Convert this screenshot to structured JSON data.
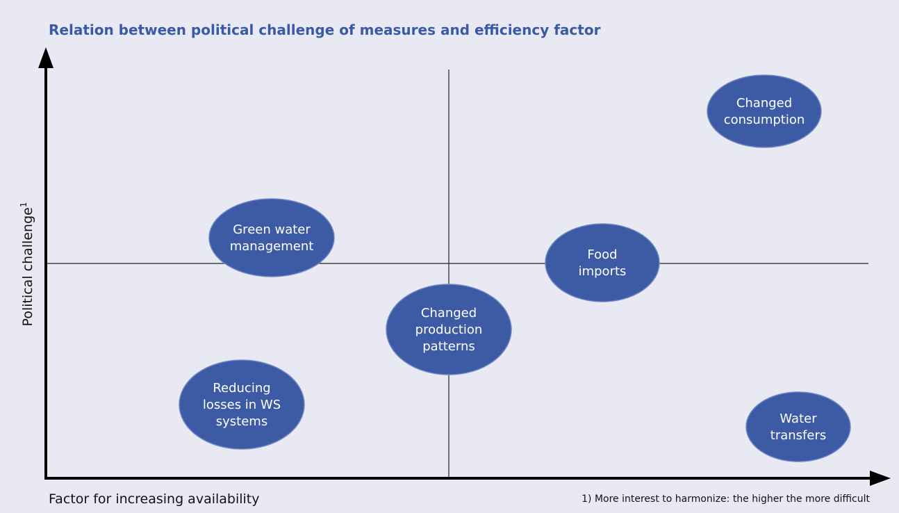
{
  "title": "Relation between political challenge of measures and efficiency factor",
  "y_axis_label": "Political challenge",
  "y_axis_label_note": "1",
  "x_axis_label": "Factor for increasing availability",
  "footnote": "1) More interest to harmonize: the higher the more difficult",
  "nodes": [
    {
      "lines": [
        "Changed",
        "consumption"
      ]
    },
    {
      "lines": [
        "Green water",
        "management"
      ]
    },
    {
      "lines": [
        "Food",
        "imports"
      ]
    },
    {
      "lines": [
        "Changed",
        "production",
        "patterns"
      ]
    },
    {
      "lines": [
        "Reducing",
        "losses in WS",
        "systems"
      ]
    },
    {
      "lines": [
        "Water",
        "transfers"
      ]
    }
  ]
}
